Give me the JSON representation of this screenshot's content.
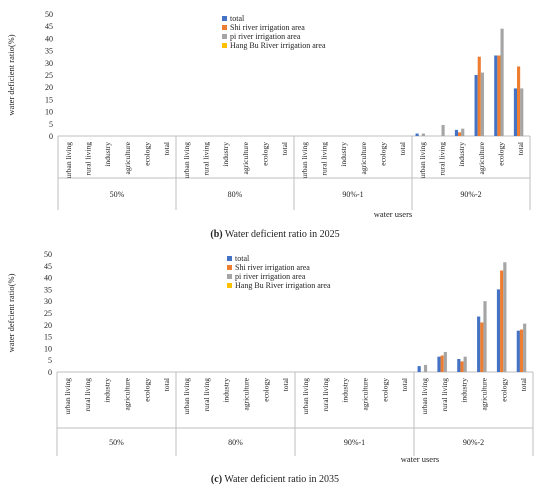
{
  "colors": {
    "total": "#4472C4",
    "shi": "#ED7D31",
    "pi": "#A5A5A5",
    "hang": "#FFC000"
  },
  "chart_data": [
    {
      "type": "bar",
      "caption_label": "(b)",
      "caption_text": "Water deficient ratio in 2025",
      "ylabel": "water deficient ratio(%)",
      "xlabel": "water users",
      "ylim": [
        0,
        50
      ],
      "yticks": [
        0,
        5,
        10,
        15,
        20,
        25,
        30,
        35,
        40,
        45,
        50
      ],
      "groups": [
        "50%",
        "80%",
        "90%-1",
        "90%-2"
      ],
      "categories": [
        "urban living",
        "rural living",
        "industry",
        "agriculture",
        "ecology",
        "total"
      ],
      "legend_position": "top-center",
      "series": [
        {
          "name": "total",
          "color_key": "total",
          "values": [
            [
              0,
              0,
              0,
              0,
              0,
              0
            ],
            [
              0,
              0,
              0,
              0,
              0,
              0
            ],
            [
              0,
              0,
              0,
              0,
              0,
              0
            ],
            [
              1,
              0,
              2.5,
              25,
              33,
              19.5
            ]
          ]
        },
        {
          "name": "Shi river irrigation area",
          "color_key": "shi",
          "values": [
            [
              0,
              0,
              0,
              0,
              0,
              0
            ],
            [
              0,
              0,
              0,
              0,
              0,
              0
            ],
            [
              0,
              0,
              0,
              0,
              0,
              0
            ],
            [
              0,
              0,
              1.5,
              32.5,
              33,
              28.5
            ]
          ]
        },
        {
          "name": "pi river irrigation area",
          "color_key": "pi",
          "values": [
            [
              0,
              0,
              0,
              0,
              0,
              0
            ],
            [
              0,
              0,
              0,
              0,
              0,
              0
            ],
            [
              0,
              0,
              0,
              0,
              0,
              0
            ],
            [
              1,
              4.5,
              3,
              26,
              44,
              19.5
            ]
          ]
        },
        {
          "name": "Hang Bu River irrigation area",
          "color_key": "hang",
          "values": [
            [
              0,
              0,
              0,
              0,
              0,
              0
            ],
            [
              0,
              0,
              0,
              0,
              0,
              0
            ],
            [
              0,
              0,
              0,
              0,
              0,
              0
            ],
            [
              0,
              0,
              0,
              0,
              0,
              0
            ]
          ]
        }
      ]
    },
    {
      "type": "bar",
      "caption_label": "(c)",
      "caption_text": "Water deficient ratio in 2035",
      "ylabel": "water defcient ratio(%)",
      "xlabel": "water users",
      "ylim": [
        0,
        50
      ],
      "yticks": [
        0,
        5,
        10,
        15,
        20,
        25,
        30,
        35,
        40,
        45,
        50
      ],
      "groups": [
        "50%",
        "80%",
        "90%-1",
        "90%-2"
      ],
      "categories": [
        "urban living",
        "rural living",
        "industry",
        "agriculture",
        "ecology",
        "total"
      ],
      "legend_position": "top-center",
      "series": [
        {
          "name": "total",
          "color_key": "total",
          "values": [
            [
              0,
              0,
              0,
              0,
              0,
              0
            ],
            [
              0,
              0,
              0,
              0,
              0,
              0
            ],
            [
              0,
              0,
              0,
              0,
              0,
              0
            ],
            [
              2.5,
              6.5,
              5.5,
              23.5,
              35,
              17.5
            ]
          ]
        },
        {
          "name": "Shi river irrigation area",
          "color_key": "shi",
          "values": [
            [
              0,
              0,
              0,
              0,
              0,
              0
            ],
            [
              0,
              0,
              0,
              0,
              0,
              0
            ],
            [
              0,
              0,
              0,
              0,
              0,
              0
            ],
            [
              0,
              7,
              4.5,
              21,
              43,
              18
            ]
          ]
        },
        {
          "name": "pi river irrigation area",
          "color_key": "pi",
          "values": [
            [
              0,
              0,
              0,
              0,
              0,
              0
            ],
            [
              0,
              0,
              0,
              0,
              0,
              0
            ],
            [
              0,
              0,
              0,
              0,
              0,
              0
            ],
            [
              3,
              8.5,
              6.5,
              30,
              46.5,
              20.5
            ]
          ]
        },
        {
          "name": "Hang Bu River irrigation area",
          "color_key": "hang",
          "values": [
            [
              0,
              0,
              0,
              0,
              0,
              0
            ],
            [
              0,
              0,
              0,
              0,
              0,
              0
            ],
            [
              0,
              0,
              0,
              0,
              0,
              0
            ],
            [
              0,
              0,
              0,
              0,
              0,
              0
            ]
          ]
        }
      ]
    }
  ]
}
